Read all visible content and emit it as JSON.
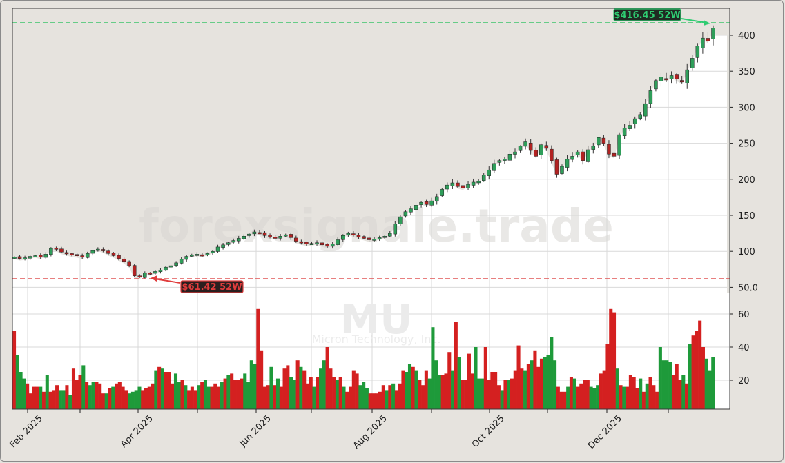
{
  "chart_data": {
    "type": "candlestick",
    "ticker": "MU",
    "company": "Micron Technology, Inc.",
    "watermark": "forexsignale.trade",
    "x_tick_labels": [
      "Feb 2025",
      "Apr 2025",
      "Jun 2025",
      "Aug 2025",
      "Oct 2025",
      "Dec 2025"
    ],
    "price_axis": {
      "ticks": [
        50.0,
        100,
        150,
        200,
        250,
        300,
        350,
        400
      ],
      "tick_labels": [
        "50.0",
        "100",
        "150",
        "200",
        "250",
        "300",
        "350",
        "400"
      ],
      "ylim": [
        41,
        438
      ]
    },
    "volume_axis": {
      "ticks": [
        20,
        40,
        60
      ],
      "tick_labels": [
        "20",
        "40",
        "60"
      ],
      "ylim": [
        0,
        70
      ]
    },
    "annotations": {
      "high": {
        "label": "$416.45 52W",
        "value": 416.45,
        "color": "#2ecc71"
      },
      "low": {
        "label": "$61.42 52W",
        "value": 61.42,
        "color": "#e03c3c"
      }
    },
    "colors": {
      "up": "#1e9a3a",
      "down": "#d42020",
      "up_candle": "#2f9e5a",
      "down_candle": "#b22222",
      "shade": "#e6e3de",
      "grid": "#d9d9d9"
    },
    "close_path": [
      92,
      90,
      91,
      93,
      94,
      92,
      96,
      104,
      103,
      99,
      97,
      95,
      94,
      92,
      97,
      101,
      103,
      101,
      97,
      94,
      90,
      86,
      80,
      66,
      64,
      70,
      69,
      72,
      74,
      78,
      80,
      84,
      89,
      93,
      95,
      96,
      95,
      97,
      100,
      106,
      109,
      112,
      115,
      118,
      121,
      124,
      127,
      126,
      122,
      120,
      119,
      121,
      123,
      119,
      114,
      112,
      110,
      111,
      112,
      109,
      107,
      110,
      116,
      122,
      125,
      123,
      120,
      118,
      116,
      117,
      119,
      121,
      125,
      138,
      148,
      155,
      159,
      164,
      168,
      165,
      170,
      176,
      186,
      192,
      195,
      190,
      188,
      193,
      196,
      197,
      206,
      213,
      222,
      226,
      228,
      235,
      238,
      246,
      252,
      240,
      232,
      248,
      243,
      226,
      207,
      218,
      228,
      232,
      238,
      226,
      241,
      246,
      258,
      250,
      235,
      232,
      262,
      271,
      275,
      284,
      290,
      305,
      323,
      337,
      342,
      338,
      344,
      339,
      335,
      352,
      368,
      385,
      396,
      392,
      410
    ],
    "volume": [
      50,
      35,
      25,
      21,
      18,
      12,
      16,
      16,
      16,
      13,
      23,
      13,
      14,
      17,
      14,
      14,
      17,
      11,
      27,
      20,
      23,
      29,
      19,
      17,
      19,
      19,
      18,
      12,
      12,
      15,
      16,
      18,
      19,
      16,
      14,
      12,
      13,
      14,
      16,
      14,
      15,
      16,
      18,
      26,
      28,
      27,
      25,
      25,
      18,
      24,
      19,
      20,
      17,
      14,
      16,
      14,
      17,
      19,
      20,
      16,
      16,
      18,
      16,
      19,
      21,
      23,
      24,
      20,
      20,
      21,
      24,
      19,
      32,
      30,
      63,
      38,
      16,
      17,
      28,
      17,
      21,
      16,
      27,
      29,
      22,
      20,
      32,
      28,
      26,
      18,
      22,
      16,
      22,
      27,
      32,
      40,
      27,
      22,
      20,
      22,
      16,
      13,
      16,
      26,
      24,
      17,
      19,
      15,
      12,
      12,
      12,
      13,
      17,
      14,
      17,
      18,
      14,
      18,
      26,
      25,
      30,
      28,
      26,
      20,
      17,
      26,
      21,
      52,
      32,
      23,
      23,
      24,
      37,
      26,
      55,
      34,
      20,
      20,
      36,
      24,
      40,
      21,
      21,
      40,
      20,
      25,
      25,
      17,
      14,
      20,
      20,
      21,
      26,
      41,
      27,
      26,
      30,
      32,
      38,
      28,
      33,
      34,
      35,
      46,
      32,
      16,
      13,
      13,
      16,
      22,
      21,
      16,
      18,
      20,
      20,
      16,
      15,
      17,
      24,
      26,
      42,
      63,
      61,
      27,
      17,
      16,
      16,
      23,
      22,
      15,
      21,
      13,
      18,
      22,
      17,
      13,
      40,
      32,
      32,
      31,
      23,
      30,
      20,
      23,
      18,
      42,
      47,
      50,
      56,
      40,
      33,
      26,
      34
    ]
  }
}
